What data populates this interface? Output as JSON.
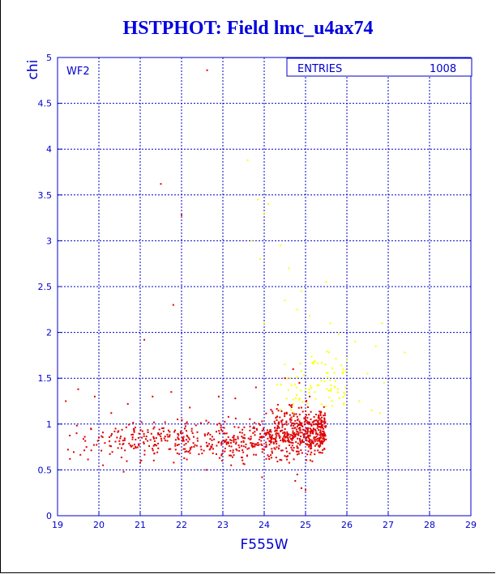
{
  "title": "HSTPHOT: Field lmc_u4ax74",
  "colors": {
    "axis": "#0000cc",
    "grid": "#0000cc",
    "title": "#0000e0",
    "good_points": "#e00000",
    "flagged_points": "#ffff00"
  },
  "stats_box": {
    "label": "ENTRIES",
    "value": "1008"
  },
  "chart_data": {
    "type": "scatter",
    "title": "HSTPHOT: Field lmc_u4ax74",
    "panel_label": "WF2",
    "xlabel": "F555W",
    "ylabel": "chi",
    "xlim": [
      19,
      29
    ],
    "ylim": [
      0,
      5
    ],
    "x_ticks": [
      "19",
      "20",
      "21",
      "22",
      "23",
      "24",
      "25",
      "26",
      "27",
      "28",
      "29"
    ],
    "y_ticks": [
      "0",
      "0.5",
      "1",
      "1.5",
      "2",
      "2.5",
      "3",
      "3.5",
      "4",
      "4.5",
      "5"
    ],
    "grid": true,
    "entries": 1008,
    "series": [
      {
        "color": "#e00000",
        "points": [
          [
            22.62,
            4.86
          ],
          [
            21.5,
            3.62
          ],
          [
            22.0,
            3.28
          ],
          [
            21.8,
            2.3
          ],
          [
            19.2,
            1.25
          ],
          [
            19.5,
            1.38
          ],
          [
            19.9,
            1.3
          ],
          [
            20.3,
            1.12
          ],
          [
            20.7,
            1.22
          ],
          [
            21.3,
            1.3
          ],
          [
            21.75,
            1.35
          ],
          [
            22.2,
            1.18
          ],
          [
            22.9,
            1.3
          ],
          [
            23.3,
            1.28
          ],
          [
            23.8,
            1.4
          ],
          [
            19.3,
            0.62
          ],
          [
            19.7,
            0.75
          ],
          [
            20.1,
            0.55
          ],
          [
            20.6,
            0.48
          ],
          [
            21.0,
            0.58
          ],
          [
            21.1,
            1.92
          ],
          [
            22.6,
            0.5
          ],
          [
            23.2,
            0.55
          ],
          [
            23.95,
            0.42
          ],
          [
            24.75,
            0.38
          ],
          [
            24.9,
            0.3
          ],
          [
            25.0,
            0.28
          ],
          [
            24.8,
            0.45
          ],
          [
            25.1,
            1.3
          ],
          [
            24.5,
            1.5
          ],
          [
            24.7,
            1.6
          ],
          [
            24.85,
            1.45
          ]
        ]
      },
      {
        "color": "#ffff00",
        "points": [
          [
            23.6,
            3.88
          ],
          [
            23.85,
            3.45
          ],
          [
            24.1,
            3.4
          ],
          [
            24.0,
            3.3
          ],
          [
            23.7,
            3.0
          ],
          [
            23.9,
            2.8
          ],
          [
            24.4,
            2.95
          ],
          [
            24.6,
            2.7
          ],
          [
            25.5,
            2.55
          ],
          [
            24.9,
            2.45
          ],
          [
            24.5,
            2.35
          ],
          [
            24.0,
            2.1
          ],
          [
            24.8,
            2.25
          ],
          [
            25.1,
            2.18
          ],
          [
            25.6,
            2.1
          ],
          [
            26.85,
            2.1
          ],
          [
            25.8,
            1.98
          ],
          [
            26.2,
            1.9
          ],
          [
            26.7,
            1.85
          ],
          [
            27.4,
            1.78
          ],
          [
            26.0,
            1.7
          ],
          [
            26.5,
            1.55
          ],
          [
            26.9,
            1.45
          ],
          [
            25.7,
            1.4
          ],
          [
            26.3,
            1.25
          ],
          [
            26.6,
            1.15
          ],
          [
            26.8,
            1.12
          ]
        ]
      }
    ],
    "clusters": [
      {
        "color": "#e00000",
        "count": 620,
        "x_range": [
          19.1,
          25.5
        ],
        "y_range": [
          0.52,
          1.12
        ]
      },
      {
        "color": "#e00000",
        "count": 300,
        "x_range": [
          24.0,
          25.5
        ],
        "y_range": [
          0.6,
          1.3
        ]
      },
      {
        "color": "#ffff00",
        "count": 80,
        "x_range": [
          24.2,
          26.0
        ],
        "y_range": [
          1.0,
          1.9
        ]
      }
    ]
  }
}
